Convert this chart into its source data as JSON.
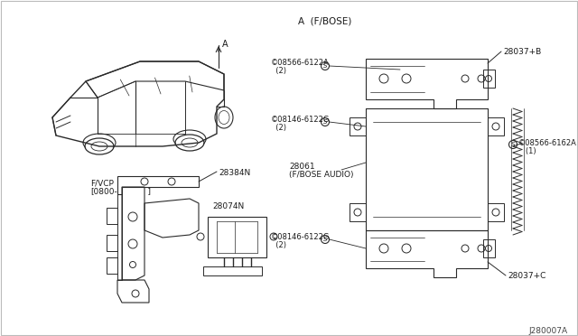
{
  "bg_color": "#ffffff",
  "diagram_code": "J280007A",
  "section_a": "A  (F/BOSE)",
  "fvcp": "F/VCP\n[0800-",
  "fvcp_bracket": "  ]",
  "part_28037b": "28037+B",
  "part_28037c": "28037+C",
  "part_28061": "28061",
  "part_28061b": "(F/BOSE AUDIO)",
  "part_28384n": "28384N",
  "part_28074n": "28074N",
  "screw1_label": "©08566-6122A",
  "screw1_sub": "  (2)",
  "screw2_label": "©08146-6122G",
  "screw2_sub": "  (2)",
  "screw3_label": "©08566-6162A",
  "screw3_sub": "   (1)",
  "screw4_label": "©08146-6122G",
  "screw4_sub": "  (2)",
  "text_color": "#1a1a1a",
  "line_color": "#2a2a2a"
}
